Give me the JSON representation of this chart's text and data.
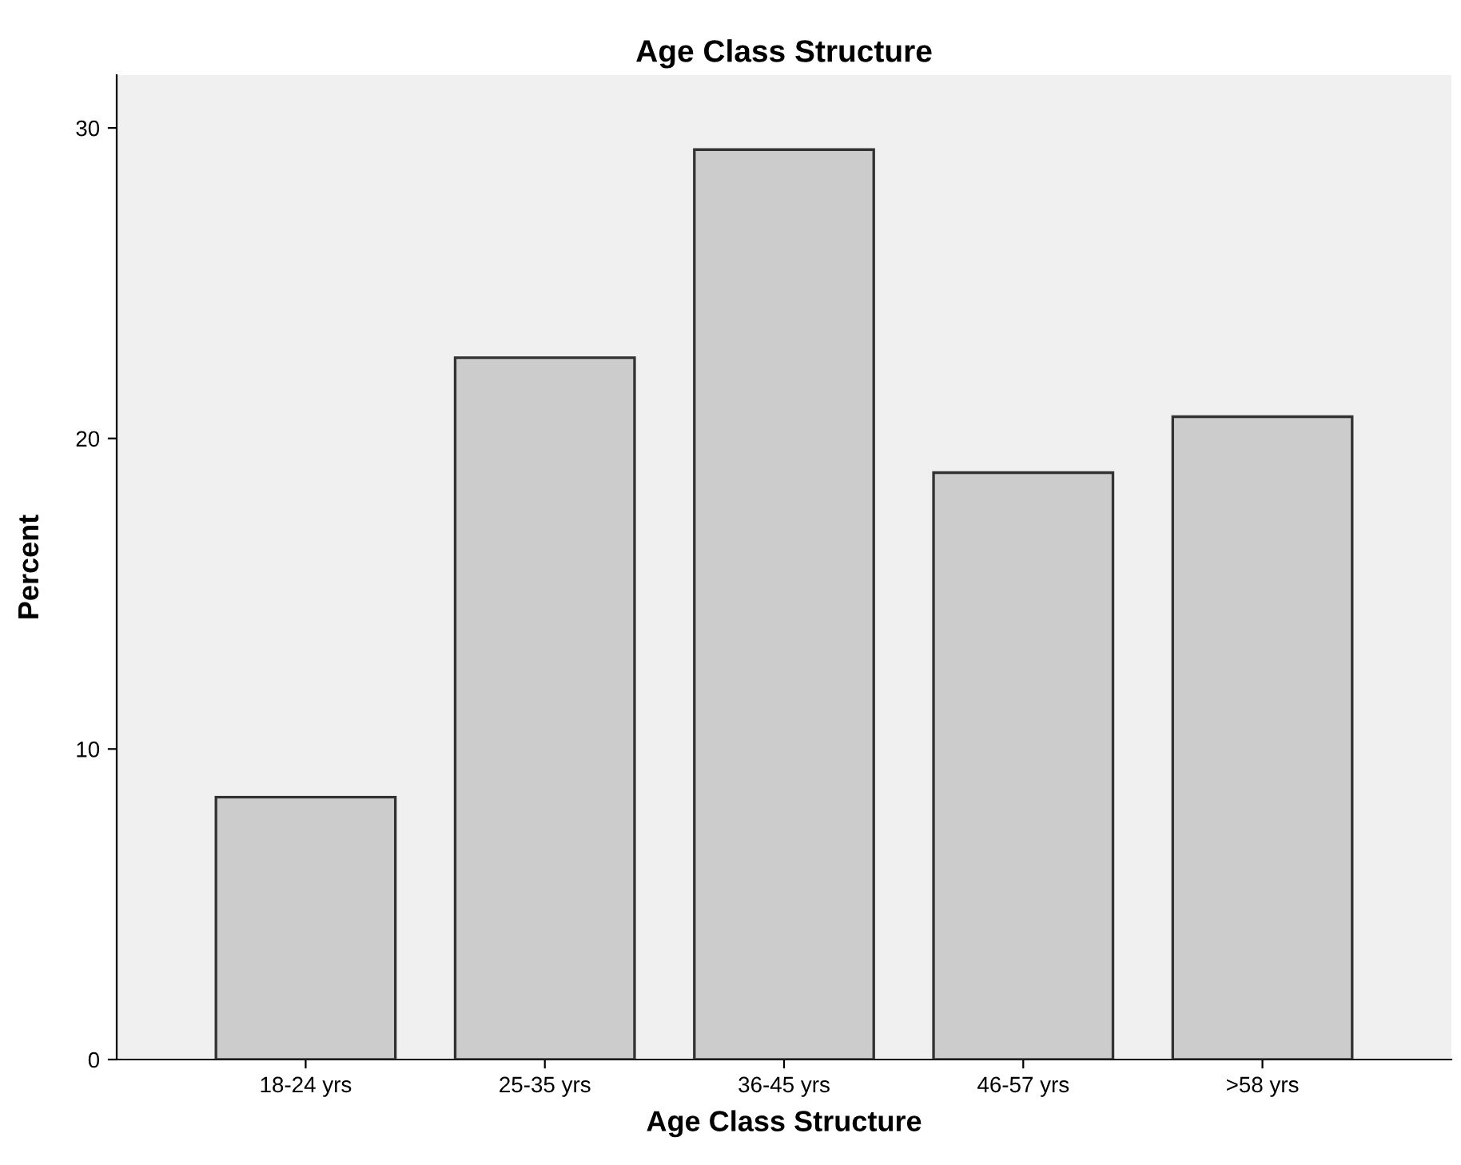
{
  "chart_data": {
    "type": "bar",
    "title": "Age Class Structure",
    "xlabel": "Age Class Structure",
    "ylabel": "Percent",
    "categories": [
      "18-24 yrs",
      "25-35 yrs",
      "36-45 yrs",
      "46-57 yrs",
      ">58 yrs"
    ],
    "values": [
      8.45,
      22.6,
      29.3,
      18.9,
      20.7
    ],
    "color": "#cccccc",
    "ylim": [
      0,
      31.7
    ],
    "yticks": [
      0,
      10,
      20,
      30
    ],
    "grid": false,
    "legend": false
  }
}
